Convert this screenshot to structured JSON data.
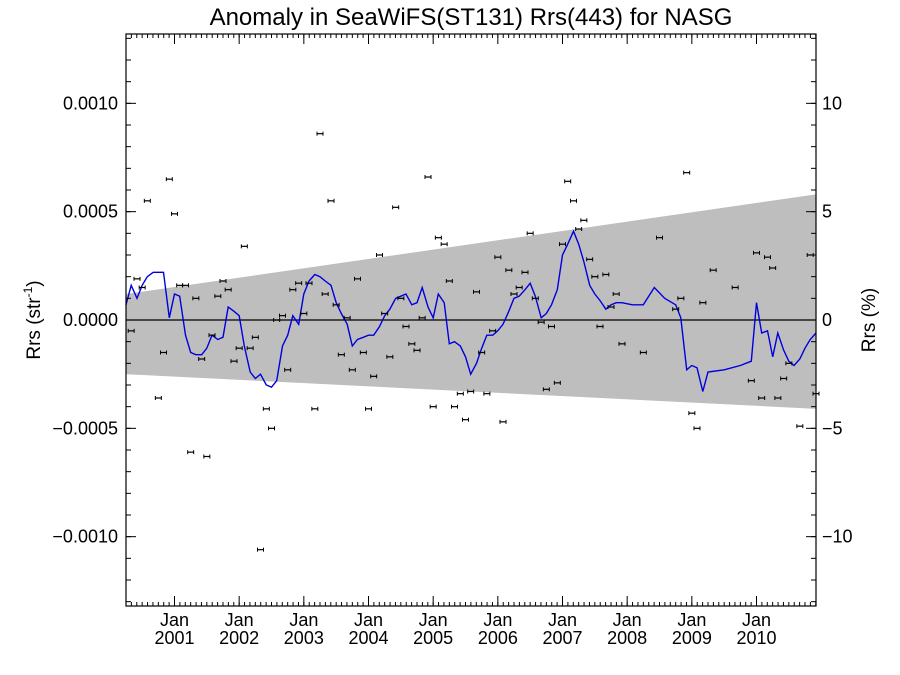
{
  "chart_data": {
    "type": "line",
    "title": "Anomaly in SeaWiFS(ST131) Rrs(443) for NASG",
    "ylabel_main": "Rrs (str",
    "ylabel_sup": "-1",
    "ylabel_close": ")",
    "y2label": "Rrs (%)",
    "xlim": [
      2000.25,
      2010.92
    ],
    "ylim": [
      -0.00132,
      0.00132
    ],
    "y2lim": [
      -13.2,
      13.2
    ],
    "grid": false,
    "x_ticks": [
      {
        "x": 2001.0,
        "month": "Jan",
        "year": "2001"
      },
      {
        "x": 2002.0,
        "month": "Jan",
        "year": "2002"
      },
      {
        "x": 2003.0,
        "month": "Jan",
        "year": "2003"
      },
      {
        "x": 2004.0,
        "month": "Jan",
        "year": "2004"
      },
      {
        "x": 2005.0,
        "month": "Jan",
        "year": "2005"
      },
      {
        "x": 2006.0,
        "month": "Jan",
        "year": "2006"
      },
      {
        "x": 2007.0,
        "month": "Jan",
        "year": "2007"
      },
      {
        "x": 2008.0,
        "month": "Jan",
        "year": "2008"
      },
      {
        "x": 2009.0,
        "month": "Jan",
        "year": "2009"
      },
      {
        "x": 2010.0,
        "month": "Jan",
        "year": "2010"
      }
    ],
    "y_ticks": [
      {
        "v": 0.001,
        "label": "0.0010"
      },
      {
        "v": 0.0005,
        "label": "0.0005"
      },
      {
        "v": 0.0,
        "label": "0.0000"
      },
      {
        "v": -0.0005,
        "label": "−0.0005"
      },
      {
        "v": -0.001,
        "label": "−0.0010"
      }
    ],
    "y2_ticks": [
      {
        "v": 10,
        "label": "10"
      },
      {
        "v": 5,
        "label": "5"
      },
      {
        "v": 0,
        "label": "0"
      },
      {
        "v": -5,
        "label": "−5"
      },
      {
        "v": -10,
        "label": "−10"
      }
    ],
    "band": {
      "x": [
        2000.25,
        2010.92
      ],
      "upper": [
        0.00012,
        0.00058
      ],
      "lower": [
        -0.00025,
        -0.00041
      ],
      "color": "#bebebe"
    },
    "line": {
      "color": "#0000dd",
      "points": [
        [
          2000.25,
          7e-05
        ],
        [
          2000.33,
          0.00016
        ],
        [
          2000.42,
          0.0001
        ],
        [
          2000.5,
          0.00016
        ],
        [
          2000.58,
          0.0002
        ],
        [
          2000.67,
          0.00022
        ],
        [
          2000.75,
          0.00022
        ],
        [
          2000.83,
          0.00022
        ],
        [
          2000.92,
          1e-05
        ],
        [
          2001.0,
          0.00012
        ],
        [
          2001.08,
          0.00011
        ],
        [
          2001.17,
          -7e-05
        ],
        [
          2001.25,
          -0.00015
        ],
        [
          2001.33,
          -0.00016
        ],
        [
          2001.42,
          -0.00016
        ],
        [
          2001.5,
          -0.00013
        ],
        [
          2001.58,
          -7e-05
        ],
        [
          2001.67,
          -9e-05
        ],
        [
          2001.75,
          -8e-05
        ],
        [
          2001.83,
          6e-05
        ],
        [
          2001.92,
          4e-05
        ],
        [
          2002.0,
          2e-05
        ],
        [
          2002.08,
          -0.00012
        ],
        [
          2002.17,
          -0.00024
        ],
        [
          2002.25,
          -0.00027
        ],
        [
          2002.33,
          -0.00025
        ],
        [
          2002.42,
          -0.0003
        ],
        [
          2002.5,
          -0.00031
        ],
        [
          2002.58,
          -0.00028
        ],
        [
          2002.67,
          -0.00012
        ],
        [
          2002.75,
          -7e-05
        ],
        [
          2002.83,
          2e-05
        ],
        [
          2002.92,
          -2e-05
        ],
        [
          2003.0,
          0.00012
        ],
        [
          2003.08,
          0.00018
        ],
        [
          2003.17,
          0.00021
        ],
        [
          2003.25,
          0.0002
        ],
        [
          2003.33,
          0.00018
        ],
        [
          2003.42,
          0.00016
        ],
        [
          2003.5,
          8e-05
        ],
        [
          2003.58,
          3e-05
        ],
        [
          2003.67,
          -2e-05
        ],
        [
          2003.75,
          -0.00012
        ],
        [
          2003.83,
          -9e-05
        ],
        [
          2003.92,
          -8e-05
        ],
        [
          2004.0,
          -7e-05
        ],
        [
          2004.08,
          -7e-05
        ],
        [
          2004.17,
          -3e-05
        ],
        [
          2004.25,
          2e-05
        ],
        [
          2004.33,
          5e-05
        ],
        [
          2004.42,
          0.0001
        ],
        [
          2004.5,
          0.00011
        ],
        [
          2004.58,
          0.00012
        ],
        [
          2004.67,
          7e-05
        ],
        [
          2004.75,
          8e-05
        ],
        [
          2004.83,
          0.00015
        ],
        [
          2004.92,
          6e-05
        ],
        [
          2005.0,
          1e-05
        ],
        [
          2005.08,
          0.00012
        ],
        [
          2005.17,
          8e-05
        ],
        [
          2005.25,
          -0.00011
        ],
        [
          2005.33,
          -0.0001
        ],
        [
          2005.42,
          -0.00012
        ],
        [
          2005.5,
          -0.00017
        ],
        [
          2005.58,
          -0.00025
        ],
        [
          2005.67,
          -0.0002
        ],
        [
          2005.75,
          -0.00013
        ],
        [
          2005.83,
          -7e-05
        ],
        [
          2005.92,
          -7e-05
        ],
        [
          2006.0,
          -5e-05
        ],
        [
          2006.08,
          -2e-05
        ],
        [
          2006.17,
          4e-05
        ],
        [
          2006.25,
          0.0001
        ],
        [
          2006.33,
          0.00011
        ],
        [
          2006.42,
          0.00014
        ],
        [
          2006.5,
          0.00017
        ],
        [
          2006.58,
          0.00011
        ],
        [
          2006.67,
          1e-05
        ],
        [
          2006.75,
          3e-05
        ],
        [
          2006.83,
          7e-05
        ],
        [
          2006.92,
          0.00014
        ],
        [
          2007.0,
          0.0003
        ],
        [
          2007.08,
          0.00035
        ],
        [
          2007.17,
          0.00041
        ],
        [
          2007.25,
          0.00035
        ],
        [
          2007.33,
          0.00027
        ],
        [
          2007.42,
          0.00016
        ],
        [
          2007.5,
          0.00012
        ],
        [
          2007.58,
          9e-05
        ],
        [
          2007.67,
          5e-05
        ],
        [
          2007.75,
          7e-05
        ],
        [
          2007.83,
          8e-05
        ],
        [
          2007.92,
          8e-05
        ],
        [
          2008.08,
          7e-05
        ],
        [
          2008.25,
          7e-05
        ],
        [
          2008.42,
          0.00015
        ],
        [
          2008.58,
          0.0001
        ],
        [
          2008.75,
          7e-05
        ],
        [
          2008.83,
          1e-05
        ],
        [
          2008.92,
          -0.00023
        ],
        [
          2009.0,
          -0.00021
        ],
        [
          2009.08,
          -0.00022
        ],
        [
          2009.17,
          -0.00033
        ],
        [
          2009.25,
          -0.00024
        ],
        [
          2009.5,
          -0.00023
        ],
        [
          2009.75,
          -0.00021
        ],
        [
          2009.92,
          -0.00019
        ],
        [
          2010.0,
          8e-05
        ],
        [
          2010.08,
          -6e-05
        ],
        [
          2010.17,
          -5e-05
        ],
        [
          2010.25,
          -0.00017
        ],
        [
          2010.33,
          -6e-05
        ],
        [
          2010.42,
          -0.00014
        ],
        [
          2010.5,
          -0.00019
        ],
        [
          2010.58,
          -0.00021
        ],
        [
          2010.67,
          -0.00018
        ],
        [
          2010.75,
          -0.00013
        ],
        [
          2010.83,
          -9e-05
        ],
        [
          2010.92,
          -6e-05
        ]
      ]
    },
    "points": [
      [
        2000.33,
        -5e-05
      ],
      [
        2000.42,
        0.00019
      ],
      [
        2000.5,
        0.00015
      ],
      [
        2000.58,
        0.00055
      ],
      [
        2000.75,
        -0.00036
      ],
      [
        2000.83,
        -0.00015
      ],
      [
        2000.92,
        0.00065
      ],
      [
        2001.0,
        0.00049
      ],
      [
        2001.08,
        0.00016
      ],
      [
        2001.17,
        0.00016
      ],
      [
        2001.25,
        -0.00061
      ],
      [
        2001.33,
        0.0001
      ],
      [
        2001.42,
        -0.00018
      ],
      [
        2001.5,
        -0.00063
      ],
      [
        2001.58,
        -7e-05
      ],
      [
        2001.67,
        0.00011
      ],
      [
        2001.75,
        0.00018
      ],
      [
        2001.83,
        0.00014
      ],
      [
        2001.92,
        -0.00019
      ],
      [
        2002.0,
        -0.00013
      ],
      [
        2002.08,
        0.00034
      ],
      [
        2002.17,
        -0.00013
      ],
      [
        2002.25,
        -8e-05
      ],
      [
        2002.33,
        -0.00106
      ],
      [
        2002.42,
        -0.00041
      ],
      [
        2002.5,
        -0.0005
      ],
      [
        2002.58,
        0.0
      ],
      [
        2002.67,
        2e-05
      ],
      [
        2002.75,
        -0.00023
      ],
      [
        2002.83,
        0.00014
      ],
      [
        2002.92,
        0.00017
      ],
      [
        2003.0,
        3e-05
      ],
      [
        2003.08,
        0.00017
      ],
      [
        2003.17,
        -0.00041
      ],
      [
        2003.25,
        0.00086
      ],
      [
        2003.33,
        0.00012
      ],
      [
        2003.42,
        0.00055
      ],
      [
        2003.5,
        7e-05
      ],
      [
        2003.58,
        -0.00016
      ],
      [
        2003.67,
        1e-05
      ],
      [
        2003.75,
        -0.00023
      ],
      [
        2003.83,
        0.00019
      ],
      [
        2003.92,
        -0.00015
      ],
      [
        2004.0,
        -0.00041
      ],
      [
        2004.08,
        -0.00026
      ],
      [
        2004.17,
        0.0003
      ],
      [
        2004.25,
        3e-05
      ],
      [
        2004.33,
        -0.00017
      ],
      [
        2004.42,
        0.00052
      ],
      [
        2004.5,
        0.0001
      ],
      [
        2004.58,
        -3e-05
      ],
      [
        2004.67,
        -0.00011
      ],
      [
        2004.75,
        -0.00014
      ],
      [
        2004.83,
        1e-05
      ],
      [
        2004.92,
        0.00066
      ],
      [
        2005.0,
        -0.0004
      ],
      [
        2005.08,
        0.00038
      ],
      [
        2005.17,
        0.00035
      ],
      [
        2005.25,
        0.00018
      ],
      [
        2005.33,
        -0.0004
      ],
      [
        2005.42,
        -0.00034
      ],
      [
        2005.5,
        -0.00046
      ],
      [
        2005.58,
        -0.00033
      ],
      [
        2005.67,
        0.00013
      ],
      [
        2005.75,
        -0.00015
      ],
      [
        2005.83,
        -0.00034
      ],
      [
        2005.92,
        -5e-05
      ],
      [
        2006.0,
        0.00029
      ],
      [
        2006.08,
        -0.00047
      ],
      [
        2006.17,
        0.00023
      ],
      [
        2006.25,
        0.00012
      ],
      [
        2006.33,
        0.00015
      ],
      [
        2006.42,
        0.00022
      ],
      [
        2006.5,
        0.0004
      ],
      [
        2006.58,
        0.0001
      ],
      [
        2006.67,
        -1e-05
      ],
      [
        2006.75,
        -0.00032
      ],
      [
        2006.83,
        -3e-05
      ],
      [
        2006.92,
        -0.00029
      ],
      [
        2007.0,
        0.00035
      ],
      [
        2007.08,
        0.00064
      ],
      [
        2007.17,
        0.00055
      ],
      [
        2007.25,
        0.00042
      ],
      [
        2007.33,
        0.00046
      ],
      [
        2007.42,
        0.00028
      ],
      [
        2007.5,
        0.0002
      ],
      [
        2007.58,
        -3e-05
      ],
      [
        2007.67,
        0.00021
      ],
      [
        2007.75,
        6e-05
      ],
      [
        2007.83,
        0.00012
      ],
      [
        2007.92,
        -0.00011
      ],
      [
        2008.25,
        -0.00015
      ],
      [
        2008.5,
        0.00038
      ],
      [
        2008.75,
        5e-05
      ],
      [
        2008.83,
        0.0001
      ],
      [
        2008.92,
        0.00068
      ],
      [
        2009.0,
        -0.00043
      ],
      [
        2009.08,
        -0.0005
      ],
      [
        2009.17,
        8e-05
      ],
      [
        2009.33,
        0.00023
      ],
      [
        2009.67,
        0.00015
      ],
      [
        2009.92,
        -0.00028
      ],
      [
        2010.0,
        0.00031
      ],
      [
        2010.08,
        -0.00036
      ],
      [
        2010.17,
        0.00029
      ],
      [
        2010.25,
        0.00024
      ],
      [
        2010.33,
        -0.00036
      ],
      [
        2010.42,
        -0.00027
      ],
      [
        2010.5,
        -0.0002
      ],
      [
        2010.67,
        -0.00049
      ],
      [
        2010.83,
        0.0003
      ],
      [
        2010.92,
        -0.00034
      ]
    ]
  }
}
